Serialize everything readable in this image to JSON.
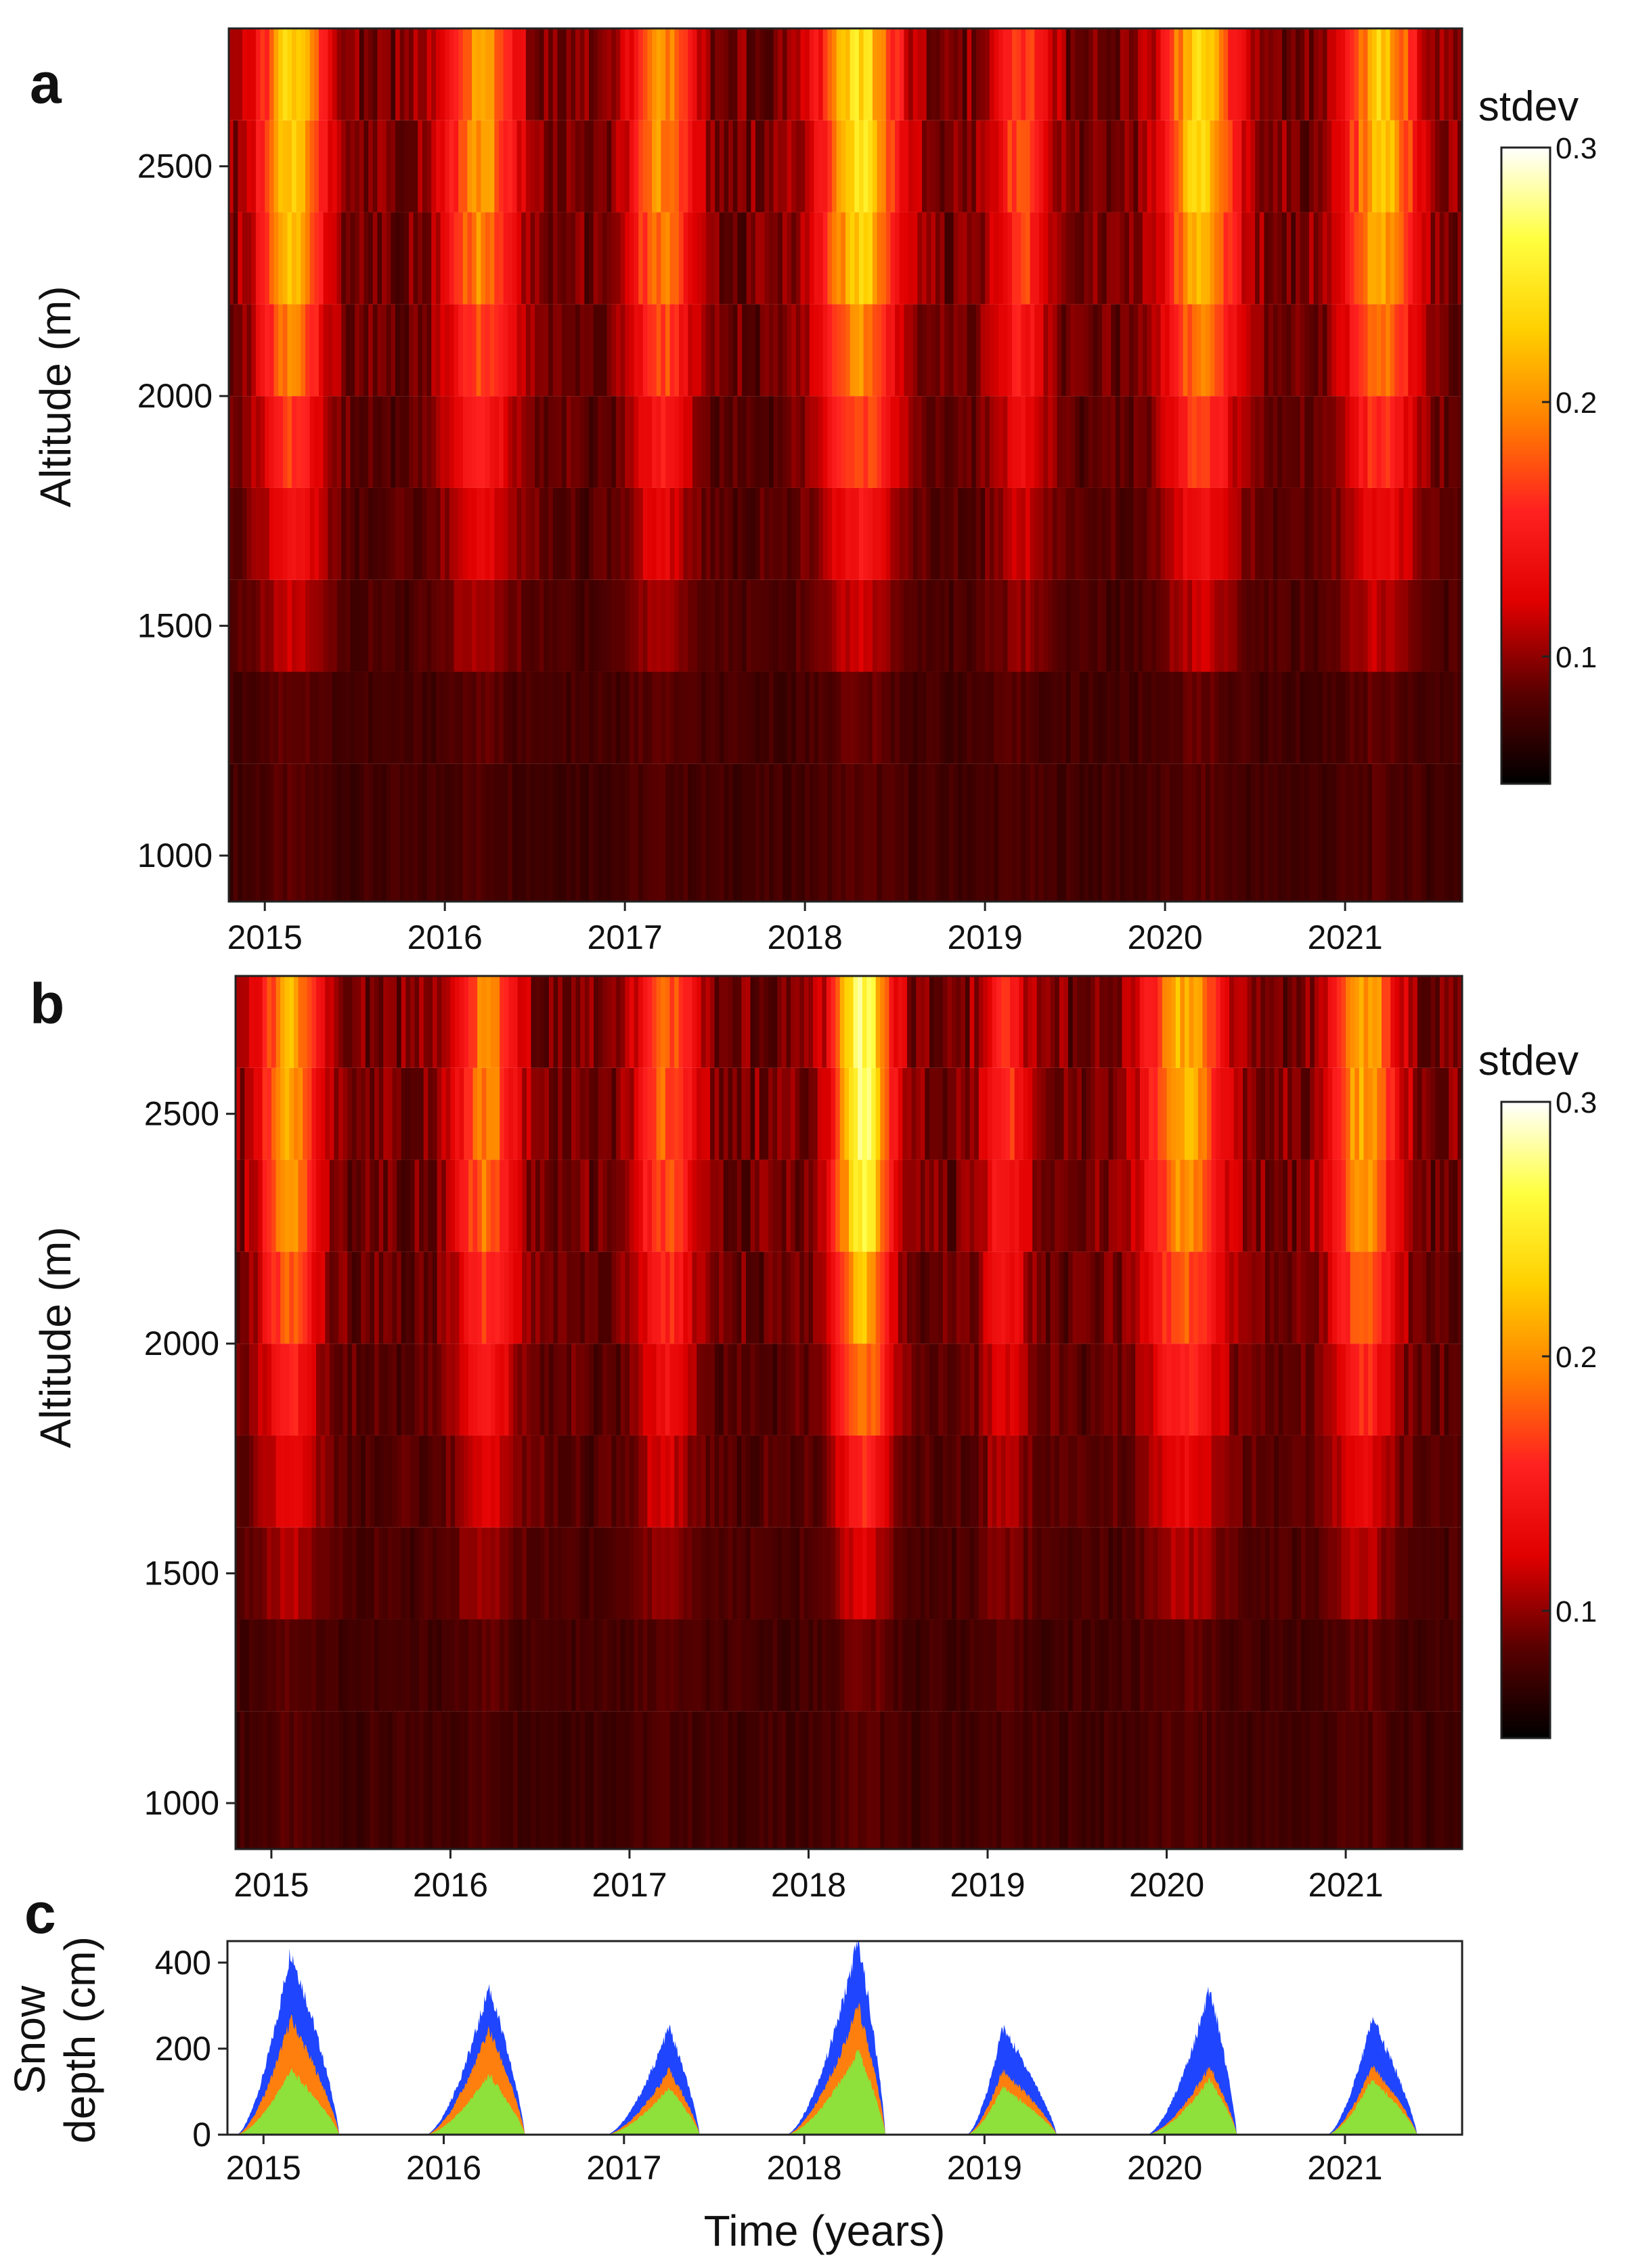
{
  "figure": {
    "colors": {
      "axis": "#222222",
      "series_bottom": "#8ee03a",
      "series_middle": "#ff7f0e",
      "series_top": "#1f45ff",
      "colormap": [
        "#000000",
        "#5a0000",
        "#e00000",
        "#ff2020",
        "#ff8000",
        "#ffd000",
        "#ffff40",
        "#ffffff"
      ]
    }
  },
  "chart_data": [
    {
      "panel": "a",
      "type": "heatmap",
      "ylabel": "Altitude (m)",
      "x_ticks": [
        "2015",
        "2016",
        "2017",
        "2018",
        "2019",
        "2020",
        "2021"
      ],
      "y_ticks": [
        "1000",
        "1500",
        "2000",
        "2500"
      ],
      "xlim": [
        2014.8,
        2021.65
      ],
      "ylim": [
        900,
        2800
      ],
      "altitude_bands": [
        [
          900,
          1200
        ],
        [
          1200,
          1400
        ],
        [
          1400,
          1600
        ],
        [
          1600,
          1800
        ],
        [
          1800,
          2000
        ],
        [
          2000,
          2200
        ],
        [
          2200,
          2400
        ],
        [
          2400,
          2600
        ],
        [
          2600,
          2800
        ]
      ],
      "colorbar": {
        "title": "stdev",
        "ticks": [
          "0.1",
          "0.2",
          "0.3"
        ],
        "range": [
          0.05,
          0.3
        ]
      },
      "season_peaks": [
        {
          "year": 2015.15,
          "peak": 0.22,
          "width": 0.18
        },
        {
          "year": 2016.2,
          "peak": 0.19,
          "width": 0.2
        },
        {
          "year": 2017.2,
          "peak": 0.19,
          "width": 0.17
        },
        {
          "year": 2018.3,
          "peak": 0.23,
          "width": 0.22
        },
        {
          "year": 2019.2,
          "peak": 0.16,
          "width": 0.15
        },
        {
          "year": 2020.2,
          "peak": 0.22,
          "width": 0.2
        },
        {
          "year": 2021.2,
          "peak": 0.21,
          "width": 0.2
        }
      ]
    },
    {
      "panel": "b",
      "type": "heatmap",
      "ylabel": "Altitude (m)",
      "x_ticks": [
        "2015",
        "2016",
        "2017",
        "2018",
        "2019",
        "2020",
        "2021"
      ],
      "y_ticks": [
        "1000",
        "1500",
        "2000",
        "2500"
      ],
      "xlim": [
        2014.8,
        2021.65
      ],
      "ylim": [
        900,
        2800
      ],
      "altitude_bands": [
        [
          900,
          1200
        ],
        [
          1200,
          1400
        ],
        [
          1400,
          1600
        ],
        [
          1600,
          1800
        ],
        [
          1800,
          2000
        ],
        [
          2000,
          2200
        ],
        [
          2200,
          2400
        ],
        [
          2400,
          2600
        ],
        [
          2600,
          2800
        ]
      ],
      "colorbar": {
        "title": "stdev",
        "ticks": [
          "0.1",
          "0.2",
          "0.3"
        ],
        "range": [
          0.05,
          0.3
        ]
      },
      "season_peaks": [
        {
          "year": 2015.1,
          "peak": 0.2,
          "width": 0.16
        },
        {
          "year": 2016.2,
          "peak": 0.18,
          "width": 0.17
        },
        {
          "year": 2017.2,
          "peak": 0.17,
          "width": 0.16
        },
        {
          "year": 2018.3,
          "peak": 0.26,
          "width": 0.16
        },
        {
          "year": 2019.1,
          "peak": 0.15,
          "width": 0.12
        },
        {
          "year": 2020.1,
          "peak": 0.2,
          "width": 0.22
        },
        {
          "year": 2021.1,
          "peak": 0.2,
          "width": 0.18
        }
      ]
    },
    {
      "panel": "c",
      "type": "area",
      "xlabel": "Time (years)",
      "ylabel": [
        "Snow",
        "depth (cm)"
      ],
      "x_ticks": [
        "2015",
        "2016",
        "2017",
        "2018",
        "2019",
        "2020",
        "2021"
      ],
      "y_ticks": [
        "0",
        "200",
        "400"
      ],
      "xlim": [
        2014.8,
        2021.65
      ],
      "ylim": [
        0,
        450
      ],
      "seasons": [
        {
          "start": 2014.85,
          "peak_time": 2015.15,
          "end": 2015.42,
          "low": 150,
          "mid": 270,
          "high": 430
        },
        {
          "start": 2015.9,
          "peak_time": 2016.25,
          "end": 2016.45,
          "low": 140,
          "mid": 245,
          "high": 345
        },
        {
          "start": 2016.9,
          "peak_time": 2017.25,
          "end": 2017.42,
          "low": 110,
          "mid": 150,
          "high": 250
        },
        {
          "start": 2017.9,
          "peak_time": 2018.3,
          "end": 2018.45,
          "low": 195,
          "mid": 300,
          "high": 455
        },
        {
          "start": 2018.9,
          "peak_time": 2019.1,
          "end": 2019.4,
          "low": 110,
          "mid": 150,
          "high": 250
        },
        {
          "start": 2019.9,
          "peak_time": 2020.25,
          "end": 2020.4,
          "low": 130,
          "mid": 160,
          "high": 340
        },
        {
          "start": 2020.9,
          "peak_time": 2021.15,
          "end": 2021.4,
          "low": 130,
          "mid": 160,
          "high": 270
        }
      ]
    }
  ]
}
